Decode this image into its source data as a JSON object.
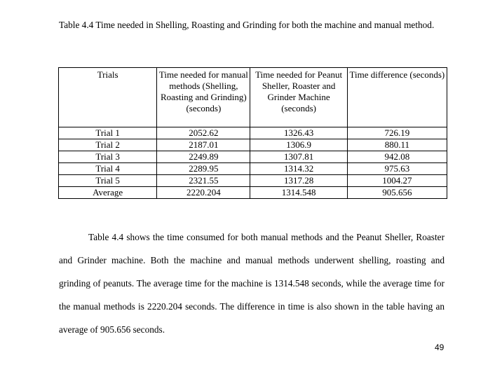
{
  "caption": "Table 4.4 Time needed in Shelling, Roasting and Grinding for both the machine and manual method.",
  "table": {
    "headers": [
      "Trials",
      "Time needed for manual methods (Shelling, Roasting and Grinding) (seconds)",
      "Time needed for Peanut Sheller, Roaster and Grinder Machine (seconds)",
      "Time difference (seconds)"
    ],
    "rows": [
      [
        "Trial 1",
        "2052.62",
        "1326.43",
        "726.19"
      ],
      [
        "Trial 2",
        "2187.01",
        "1306.9",
        "880.11"
      ],
      [
        "Trial 3",
        "2249.89",
        "1307.81",
        "942.08"
      ],
      [
        "Trial 4",
        "2289.95",
        "1314.32",
        "975.63"
      ],
      [
        "Trial 5",
        "2321.55",
        "1317.28",
        "1004.27"
      ],
      [
        "Average",
        "2220.204",
        "1314.548",
        "905.656"
      ]
    ]
  },
  "paragraph": "Table 4.4 shows the time consumed for both manual methods and the Peanut Sheller, Roaster and Grinder machine. Both the machine and manual methods underwent shelling, roasting and grinding of peanuts. The average time for the machine is 1314.548 seconds, while the average time for the manual methods is 2220.204 seconds. The difference in time is also shown in the table having an average of 905.656 seconds.",
  "page_number": "49"
}
